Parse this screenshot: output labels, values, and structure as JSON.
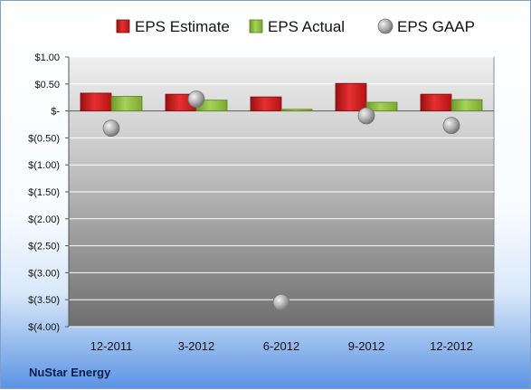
{
  "company": "NuStar Energy",
  "chart_data": {
    "type": "bar",
    "categories": [
      "12-2011",
      "3-2012",
      "6-2012",
      "9-2012",
      "12-2012"
    ],
    "series": [
      {
        "name": "EPS Estimate",
        "type": "bar",
        "color": "#d42020",
        "values": [
          0.33,
          0.31,
          0.26,
          0.51,
          0.31
        ]
      },
      {
        "name": "EPS Actual",
        "type": "bar",
        "color": "#8cbf3a",
        "values": [
          0.27,
          0.2,
          0.03,
          0.16,
          0.21
        ]
      },
      {
        "name": "EPS GAAP",
        "type": "marker",
        "color": "#a8a8a8",
        "values": [
          -0.32,
          0.22,
          -3.55,
          -0.09,
          -0.27
        ]
      }
    ],
    "ylim": [
      -4.0,
      1.0
    ],
    "ytick_values": [
      1.0,
      0.5,
      0,
      -0.5,
      -1.0,
      -1.5,
      -2.0,
      -2.5,
      -3.0,
      -3.5,
      -4.0
    ],
    "ytick_labels": [
      "$1.00",
      "$0.50",
      "$-",
      "$(0.50)",
      "$(1.00)",
      "$(1.50)",
      "$(2.00)",
      "$(2.50)",
      "$(3.00)",
      "$(3.50)",
      "$(4.00)"
    ],
    "grid": true,
    "legend_position": "top"
  }
}
